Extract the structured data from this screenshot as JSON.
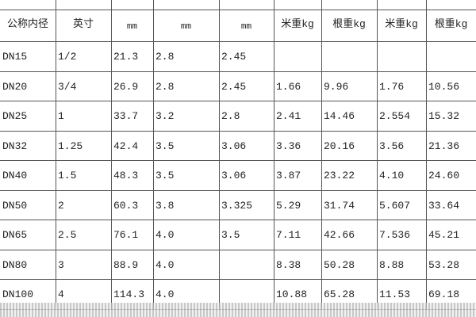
{
  "table": {
    "header": [
      "公称内径",
      "英寸",
      "mm",
      "mm",
      "mm",
      "米重kg",
      "根重kg",
      "米重kg",
      "根重kg"
    ],
    "rows": [
      [
        "DN15",
        "1/2",
        "21.3",
        "2.8",
        "2.45",
        null,
        null,
        null,
        null
      ],
      [
        "DN20",
        "3/4",
        "26.9",
        "2.8",
        "2.45",
        "1.66",
        "9.96",
        "1.76",
        "10.56"
      ],
      [
        "DN25",
        "1",
        "33.7",
        "3.2",
        "2.8",
        "2.41",
        "14.46",
        "2.554",
        "15.32"
      ],
      [
        "DN32",
        "1.25",
        "42.4",
        "3.5",
        "3.06",
        "3.36",
        "20.16",
        "3.56",
        "21.36"
      ],
      [
        "DN40",
        "1.5",
        "48.3",
        "3.5",
        "3.06",
        "3.87",
        "23.22",
        "4.10",
        "24.60"
      ],
      [
        "DN50",
        "2",
        "60.3",
        "3.8",
        "3.325",
        "5.29",
        "31.74",
        "5.607",
        "33.64"
      ],
      [
        "DN65",
        "2.5",
        "76.1",
        "4.0",
        "3.5",
        "7.11",
        "42.66",
        "7.536",
        "45.21"
      ],
      [
        "DN80",
        "3",
        "88.9",
        "4.0",
        null,
        "8.38",
        "50.28",
        "8.88",
        "53.28"
      ],
      [
        "DN100",
        "4",
        "114.3",
        "4.0",
        null,
        "10.88",
        "65.28",
        "11.53",
        "69.18"
      ]
    ]
  }
}
